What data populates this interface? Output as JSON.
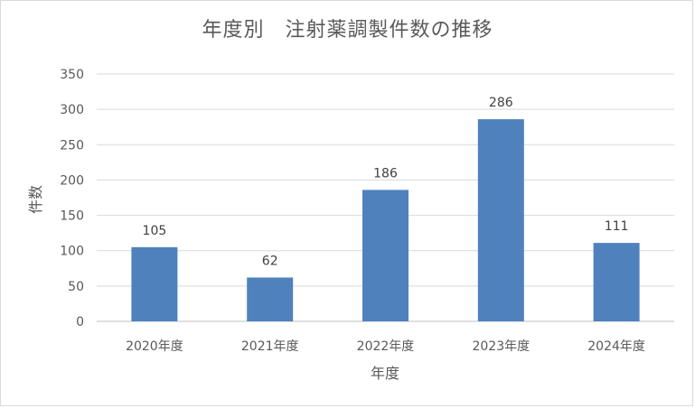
{
  "chart_data": {
    "type": "bar",
    "title": "年度別　注射薬調製件数の推移",
    "xlabel": "年度",
    "ylabel": "件数",
    "categories": [
      "2020年度",
      "2021年度",
      "2022年度",
      "2023年度",
      "2024年度"
    ],
    "values": [
      105,
      62,
      186,
      286,
      111
    ],
    "ylim": [
      0,
      350
    ],
    "yticks": [
      0,
      50,
      100,
      150,
      200,
      250,
      300,
      350
    ],
    "grid": true,
    "legend": "none",
    "bar_color": "#4f81bd"
  }
}
